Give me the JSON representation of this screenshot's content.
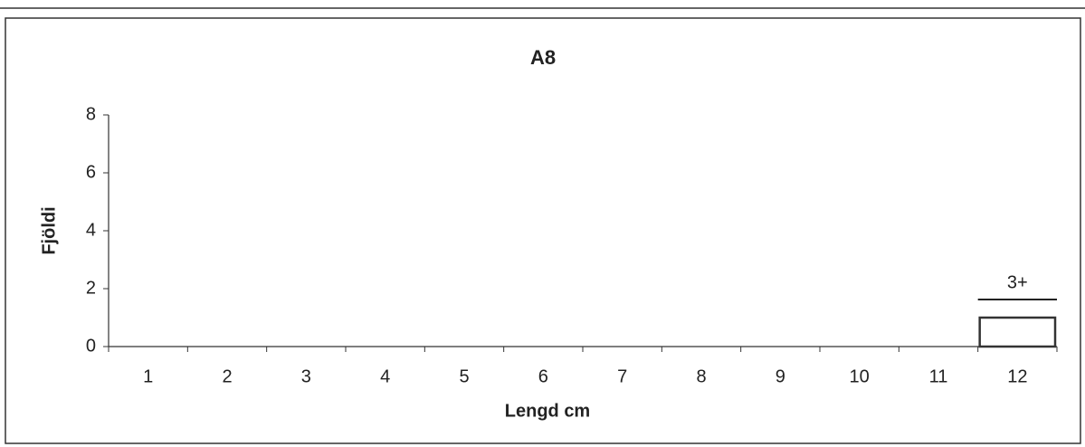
{
  "chart_data": {
    "type": "bar",
    "title": "A8",
    "x_label": "Lengd cm",
    "y_label": "Fjöldi",
    "categories": [
      "1",
      "2",
      "3",
      "4",
      "5",
      "6",
      "7",
      "8",
      "9",
      "10",
      "11",
      "12"
    ],
    "values": [
      0,
      0,
      0,
      0,
      0,
      0,
      0,
      0,
      0,
      0,
      0,
      1
    ],
    "color": "#ffffff",
    "edgecolor": "#333333",
    "annotation": "3+",
    "ylim": [
      0,
      8
    ],
    "yticks": [
      0,
      2,
      4,
      6,
      8
    ],
    "grid": false
  }
}
